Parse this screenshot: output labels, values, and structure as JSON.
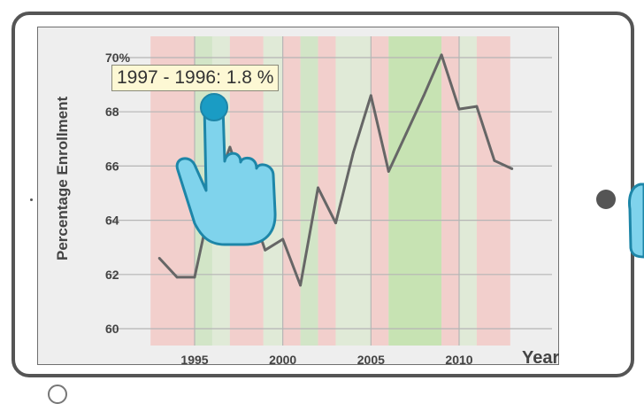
{
  "colors": {
    "frame": "#555555",
    "screen_bg": "#eeeeee",
    "line": "#666666",
    "band_red": "#f2c9c6",
    "band_green": "#cde3c0",
    "band_green_strong": "#bfe0a8",
    "hand_fill": "#7fd3ec",
    "hand_stroke": "#1d86a8"
  },
  "icons": {
    "hand": "hand-pointer-icon",
    "side_hand": "hand-icon"
  },
  "tooltip": {
    "text": "1997 - 1996: 1.8 %"
  },
  "chart_data": {
    "type": "line",
    "title": "",
    "xlabel": "Year",
    "ylabel": "Percentage Enrollment",
    "x": [
      1993,
      1994,
      1995,
      1996,
      1997,
      1998,
      1999,
      2000,
      2001,
      2002,
      2003,
      2004,
      2005,
      2006,
      2007,
      2008,
      2009,
      2010,
      2011,
      2012,
      2013
    ],
    "values": [
      62.6,
      61.9,
      61.9,
      64.9,
      66.7,
      64.8,
      62.9,
      63.3,
      61.6,
      65.2,
      63.9,
      66.5,
      68.6,
      65.8,
      67.2,
      68.6,
      70.1,
      68.1,
      68.2,
      66.2,
      65.9
    ],
    "xlim": [
      1990,
      2015.5
    ],
    "ylim": [
      59.4,
      70.1
    ],
    "x_ticks": [
      1995,
      2000,
      2005,
      2010
    ],
    "x_tick_labels": [
      "1995",
      "2000",
      "2005",
      "2010"
    ],
    "y_ticks": [
      60,
      62,
      64,
      66,
      68,
      70
    ],
    "y_tick_labels": [
      "60",
      "62",
      "64",
      "66",
      "68",
      "70%"
    ],
    "grid": true,
    "bands": [
      {
        "start": 1992.5,
        "end": 1995.0,
        "color": "red"
      },
      {
        "start": 1995.0,
        "end": 1996.0,
        "color": "green"
      },
      {
        "start": 1996.0,
        "end": 1997.0,
        "color": "green_light"
      },
      {
        "start": 1997.0,
        "end": 1998.9,
        "color": "red"
      },
      {
        "start": 1998.9,
        "end": 2000.0,
        "color": "green_light"
      },
      {
        "start": 2000.0,
        "end": 2001.0,
        "color": "red"
      },
      {
        "start": 2001.0,
        "end": 2002.0,
        "color": "green"
      },
      {
        "start": 2002.0,
        "end": 2003.0,
        "color": "red"
      },
      {
        "start": 2003.0,
        "end": 2005.0,
        "color": "green_light"
      },
      {
        "start": 2005.0,
        "end": 2006.0,
        "color": "red"
      },
      {
        "start": 2006.0,
        "end": 2009.0,
        "color": "green_strong"
      },
      {
        "start": 2009.0,
        "end": 2010.0,
        "color": "red"
      },
      {
        "start": 2010.0,
        "end": 2011.0,
        "color": "green_light"
      },
      {
        "start": 2011.0,
        "end": 2012.9,
        "color": "red"
      }
    ]
  }
}
